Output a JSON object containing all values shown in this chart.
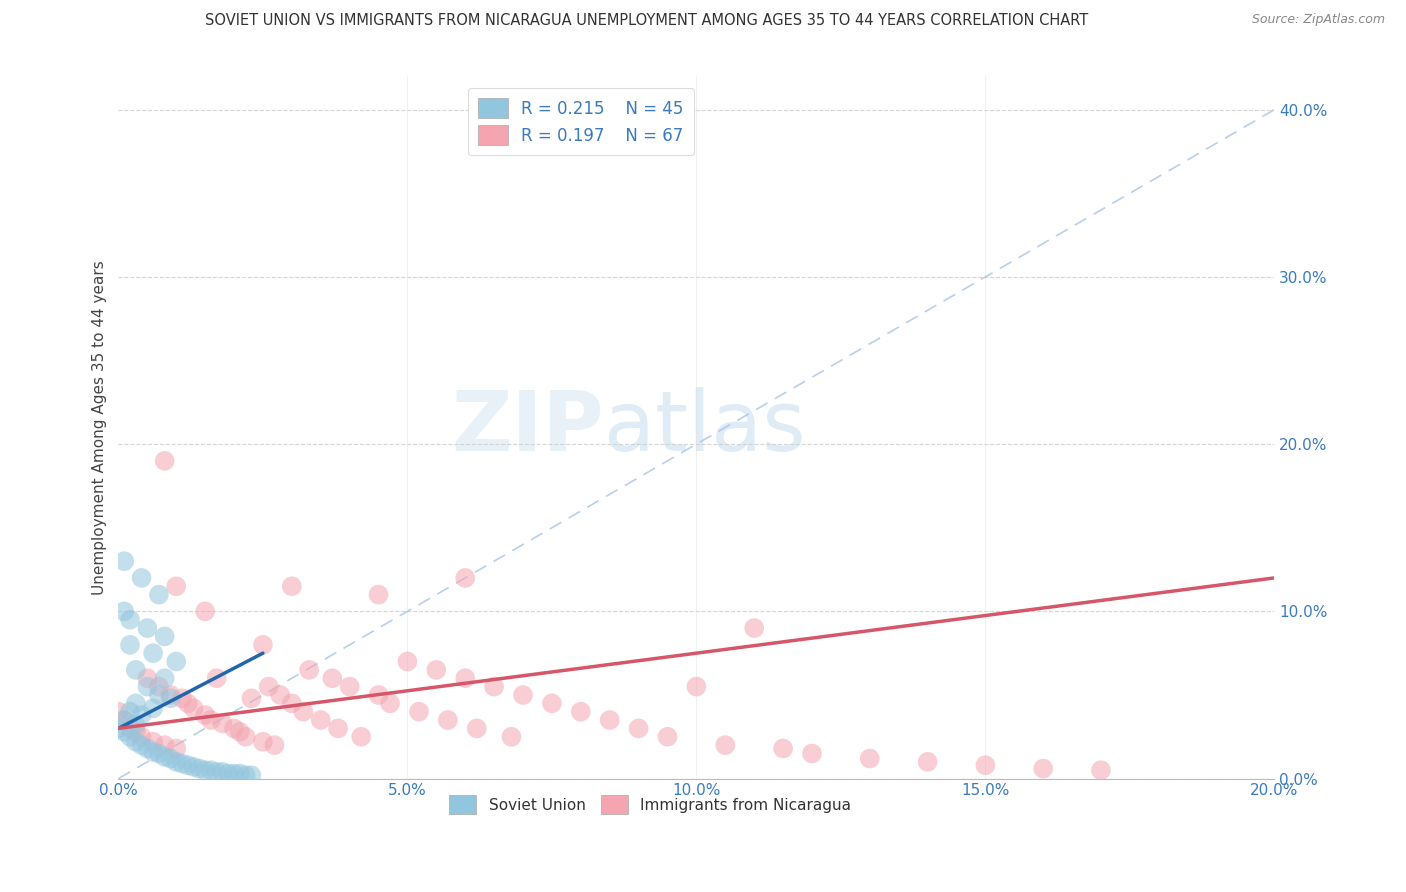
{
  "title": "SOVIET UNION VS IMMIGRANTS FROM NICARAGUA UNEMPLOYMENT AMONG AGES 35 TO 44 YEARS CORRELATION CHART",
  "source": "Source: ZipAtlas.com",
  "ylabel": "Unemployment Among Ages 35 to 44 years",
  "xlim": [
    0.0,
    0.2
  ],
  "ylim": [
    0.0,
    0.42
  ],
  "xticks": [
    0.0,
    0.05,
    0.1,
    0.15,
    0.2
  ],
  "yticks_right": [
    0.0,
    0.1,
    0.2,
    0.3,
    0.4
  ],
  "color_blue": "#92c5de",
  "color_pink": "#f4a5b0",
  "color_trend_blue": "#2166ac",
  "color_trend_pink": "#d6566a",
  "watermark_zip": "ZIP",
  "watermark_atlas": "atlas",
  "soviet_x": [
    0.0,
    0.001,
    0.001,
    0.002,
    0.002,
    0.003,
    0.003,
    0.003,
    0.004,
    0.004,
    0.005,
    0.005,
    0.006,
    0.006,
    0.007,
    0.007,
    0.008,
    0.008,
    0.009,
    0.009,
    0.01,
    0.01,
    0.011,
    0.012,
    0.013,
    0.014,
    0.015,
    0.016,
    0.017,
    0.018,
    0.019,
    0.02,
    0.021,
    0.022,
    0.023,
    0.001,
    0.002,
    0.003,
    0.004,
    0.005,
    0.006,
    0.007,
    0.008,
    0.001,
    0.002
  ],
  "soviet_y": [
    0.03,
    0.028,
    0.035,
    0.025,
    0.04,
    0.022,
    0.032,
    0.045,
    0.02,
    0.038,
    0.018,
    0.055,
    0.016,
    0.042,
    0.015,
    0.05,
    0.013,
    0.06,
    0.012,
    0.048,
    0.01,
    0.07,
    0.009,
    0.008,
    0.007,
    0.006,
    0.005,
    0.005,
    0.004,
    0.004,
    0.003,
    0.003,
    0.003,
    0.002,
    0.002,
    0.1,
    0.08,
    0.065,
    0.12,
    0.09,
    0.075,
    0.11,
    0.085,
    0.13,
    0.095
  ],
  "nicaragua_x": [
    0.0,
    0.001,
    0.002,
    0.003,
    0.004,
    0.005,
    0.006,
    0.007,
    0.008,
    0.009,
    0.01,
    0.011,
    0.012,
    0.013,
    0.015,
    0.016,
    0.017,
    0.018,
    0.02,
    0.021,
    0.022,
    0.023,
    0.025,
    0.026,
    0.027,
    0.028,
    0.03,
    0.032,
    0.033,
    0.035,
    0.037,
    0.038,
    0.04,
    0.042,
    0.045,
    0.047,
    0.05,
    0.052,
    0.055,
    0.057,
    0.06,
    0.062,
    0.065,
    0.068,
    0.07,
    0.075,
    0.08,
    0.085,
    0.09,
    0.095,
    0.1,
    0.105,
    0.11,
    0.115,
    0.12,
    0.13,
    0.14,
    0.15,
    0.16,
    0.17,
    0.01,
    0.015,
    0.03,
    0.045,
    0.06,
    0.008,
    0.025
  ],
  "nicaragua_y": [
    0.04,
    0.035,
    0.03,
    0.028,
    0.025,
    0.06,
    0.022,
    0.055,
    0.02,
    0.05,
    0.018,
    0.048,
    0.045,
    0.042,
    0.038,
    0.035,
    0.06,
    0.033,
    0.03,
    0.028,
    0.025,
    0.048,
    0.022,
    0.055,
    0.02,
    0.05,
    0.045,
    0.04,
    0.065,
    0.035,
    0.06,
    0.03,
    0.055,
    0.025,
    0.05,
    0.045,
    0.07,
    0.04,
    0.065,
    0.035,
    0.06,
    0.03,
    0.055,
    0.025,
    0.05,
    0.045,
    0.04,
    0.035,
    0.03,
    0.025,
    0.055,
    0.02,
    0.09,
    0.018,
    0.015,
    0.012,
    0.01,
    0.008,
    0.006,
    0.005,
    0.115,
    0.1,
    0.115,
    0.11,
    0.12,
    0.19,
    0.08
  ],
  "su_trend_x0": 0.0,
  "su_trend_x1": 0.025,
  "su_trend_y0": 0.03,
  "su_trend_y1": 0.075,
  "nic_trend_x0": 0.0,
  "nic_trend_x1": 0.2,
  "nic_trend_y0": 0.03,
  "nic_trend_y1": 0.12
}
